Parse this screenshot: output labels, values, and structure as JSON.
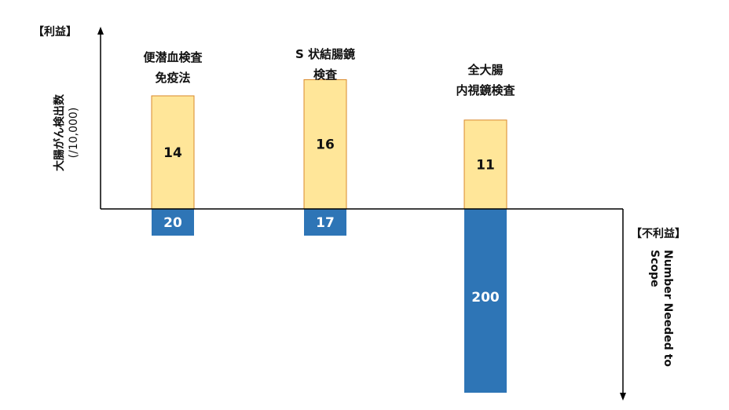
{
  "labels": {
    "benefit": "【利益】",
    "harm": "【不利益】",
    "y_main": "大腸がん検出数",
    "y_unit": "(/10,000)",
    "nns": "Number Needed to Scope"
  },
  "colors": {
    "benefit_fill": "#FFE699",
    "benefit_border": "#D9882A",
    "harm_fill": "#2E75B6",
    "axis": "#000000"
  },
  "chart_data": {
    "type": "bar",
    "categories": [
      [
        "便潜血検査",
        "免疫法"
      ],
      [
        "S 状結腸鏡",
        "検査"
      ],
      [
        "全大腸",
        "内視鏡検査"
      ]
    ],
    "series": [
      {
        "name": "【利益】",
        "values": [
          14,
          16,
          11
        ]
      },
      {
        "name": "【不利益】",
        "values": [
          20,
          17,
          200
        ]
      }
    ],
    "ylabel": "大腸がん検出数 (/10,000)",
    "xlabel": "",
    "grid": false
  }
}
